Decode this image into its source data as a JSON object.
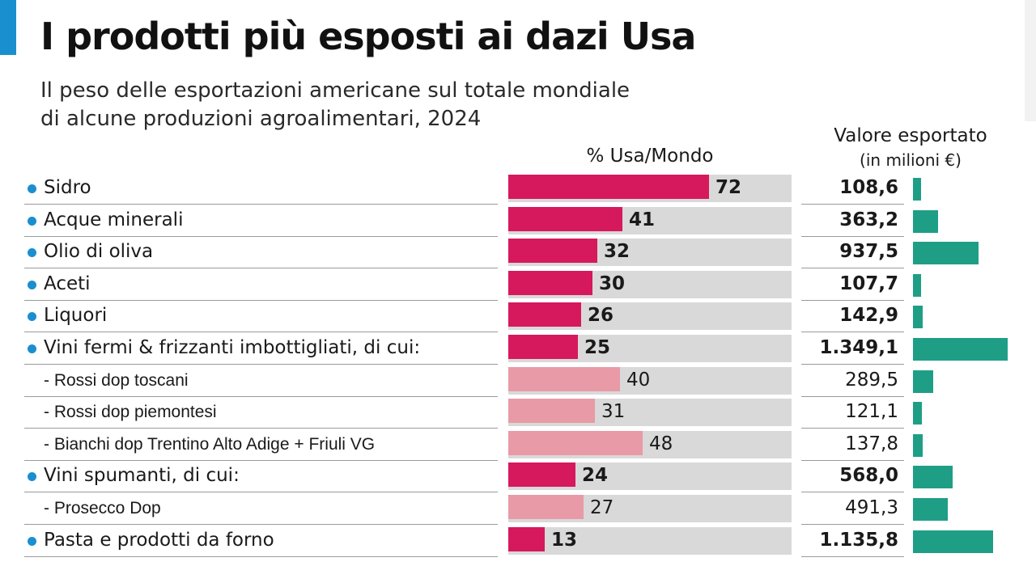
{
  "title": "I prodotti più esposti ai dazi Usa",
  "subtitle_lines": [
    "Il peso delle esportazioni americane sul totale mondiale",
    "di alcune produzioni agroalimentari, 2024"
  ],
  "columns": {
    "pct_header": "% Usa/Mondo",
    "value_header": "Valore esportato",
    "value_unit": "(in milioni €)"
  },
  "colors": {
    "accent": "#1a8fd0",
    "pct_main": "#d6185d",
    "pct_sub": "#e89aa6",
    "value_bar": "#1f9e86",
    "track": "#d9d9d9"
  },
  "chart_data": {
    "type": "bar",
    "series_names": [
      "% Usa/Mondo",
      "Valore esportato (in milioni €)"
    ],
    "pct_max": 100,
    "value_max": 1349.1,
    "rows": [
      {
        "label": "Sidro",
        "level": "main",
        "pct": 72,
        "pct_text": "72",
        "value": 108.6,
        "value_text": "108,6"
      },
      {
        "label": "Acque minerali",
        "level": "main",
        "pct": 41,
        "pct_text": "41",
        "value": 363.2,
        "value_text": "363,2"
      },
      {
        "label": "Olio di oliva",
        "level": "main",
        "pct": 32,
        "pct_text": "32",
        "value": 937.5,
        "value_text": "937,5"
      },
      {
        "label": "Aceti",
        "level": "main",
        "pct": 30,
        "pct_text": "30",
        "value": 107.7,
        "value_text": "107,7"
      },
      {
        "label": "Liquori",
        "level": "main",
        "pct": 26,
        "pct_text": "26",
        "value": 142.9,
        "value_text": "142,9"
      },
      {
        "label": "Vini fermi & frizzanti imbottigliati, di cui:",
        "level": "main",
        "pct": 25,
        "pct_text": "25",
        "value": 1349.1,
        "value_text": "1.349,1"
      },
      {
        "label": "- Rossi dop toscani",
        "level": "sub",
        "pct": 40,
        "pct_text": "40",
        "value": 289.5,
        "value_text": "289,5"
      },
      {
        "label": "- Rossi dop piemontesi",
        "level": "sub",
        "pct": 31,
        "pct_text": "31",
        "value": 121.1,
        "value_text": "121,1"
      },
      {
        "label": "- Bianchi dop Trentino Alto Adige + Friuli VG",
        "level": "sub",
        "pct": 48,
        "pct_text": "48",
        "value": 137.8,
        "value_text": "137,8"
      },
      {
        "label": "Vini spumanti, di cui:",
        "level": "main",
        "pct": 24,
        "pct_text": "24",
        "value": 568.0,
        "value_text": "568,0"
      },
      {
        "label": "- Prosecco Dop",
        "level": "sub",
        "pct": 27,
        "pct_text": "27",
        "value": 491.3,
        "value_text": "491,3"
      },
      {
        "label": "Pasta e prodotti da forno",
        "level": "main",
        "pct": 13,
        "pct_text": "13",
        "value": 1135.8,
        "value_text": "1.135,8"
      }
    ]
  }
}
